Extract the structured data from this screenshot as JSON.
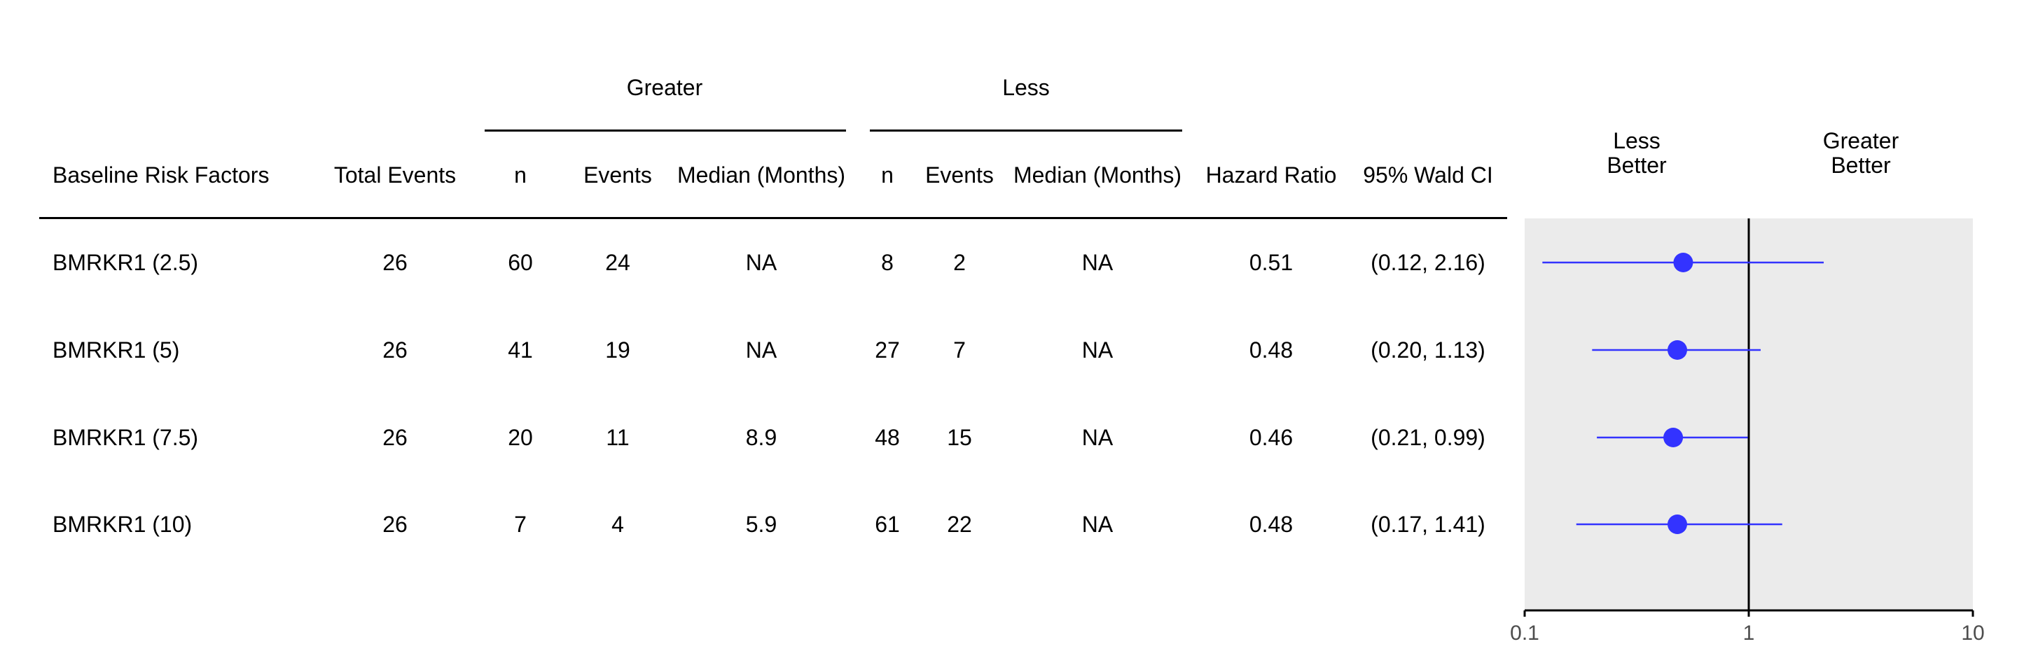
{
  "table": {
    "group_headers": {
      "greater": "Greater",
      "less": "Less"
    },
    "columns": {
      "factor": "Baseline Risk Factors",
      "total_events": "Total Events",
      "greater_n": "n",
      "greater_events": "Events",
      "greater_median": "Median (Months)",
      "less_n": "n",
      "less_events": "Events",
      "less_median": "Median (Months)",
      "hr": "Hazard Ratio",
      "ci": "95% Wald CI"
    },
    "rows": [
      {
        "factor": "BMRKR1 (2.5)",
        "total_events": "26",
        "greater_n": "60",
        "greater_events": "24",
        "greater_median": "NA",
        "less_n": "8",
        "less_events": "2",
        "less_median": "NA",
        "hr": "0.51",
        "ci": "(0.12, 2.16)"
      },
      {
        "factor": "BMRKR1 (5)",
        "total_events": "26",
        "greater_n": "41",
        "greater_events": "19",
        "greater_median": "NA",
        "less_n": "27",
        "less_events": "7",
        "less_median": "NA",
        "hr": "0.48",
        "ci": "(0.20, 1.13)"
      },
      {
        "factor": "BMRKR1 (7.5)",
        "total_events": "26",
        "greater_n": "20",
        "greater_events": "11",
        "greater_median": "8.9",
        "less_n": "48",
        "less_events": "15",
        "less_median": "NA",
        "hr": "0.46",
        "ci": "(0.21, 0.99)"
      },
      {
        "factor": "BMRKR1 (10)",
        "total_events": "26",
        "greater_n": "7",
        "greater_events": "4",
        "greater_median": "5.9",
        "less_n": "61",
        "less_events": "22",
        "less_median": "NA",
        "hr": "0.48",
        "ci": "(0.17, 1.41)"
      }
    ]
  },
  "forest_headers": {
    "left_line1": "Less",
    "left_line2": "Better",
    "right_line1": "Greater",
    "right_line2": "Better"
  },
  "colors": {
    "point": "#3333ff",
    "panel_bg": "#ebebeb",
    "axis_text": "#4d4d4d"
  },
  "chart_data": {
    "type": "scatter",
    "subtype": "forest",
    "x_scale": "log10",
    "xlim": [
      0.1,
      10
    ],
    "x_ticks": [
      0.1,
      1,
      10
    ],
    "x_tick_labels": [
      "0.1",
      "1",
      "10"
    ],
    "reference_line": 1,
    "categories": [
      "BMRKR1 (2.5)",
      "BMRKR1 (5)",
      "BMRKR1 (7.5)",
      "BMRKR1 (10)"
    ],
    "estimates": [
      0.51,
      0.48,
      0.46,
      0.48
    ],
    "ci_lower": [
      0.12,
      0.2,
      0.21,
      0.17
    ],
    "ci_upper": [
      2.16,
      1.13,
      0.99,
      1.41
    ],
    "grid": false,
    "legend": "none"
  }
}
